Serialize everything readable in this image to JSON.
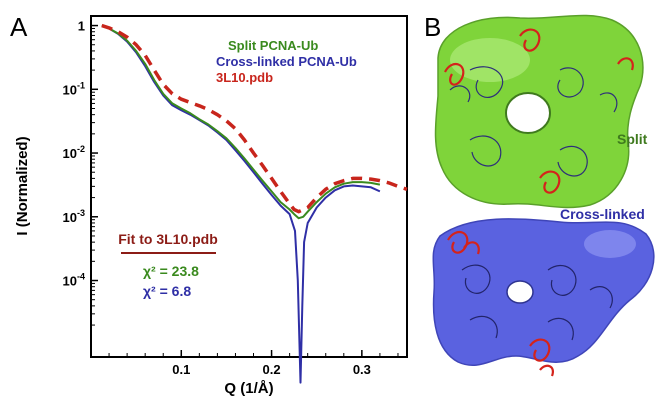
{
  "panel_labels": {
    "a": "A",
    "b": "B"
  },
  "colors": {
    "split": "#3a8a1e",
    "crosslinked": "#2f2fa6",
    "pdb": "#c8251c",
    "fit_label": "#8c1c16",
    "axis": "#000000"
  },
  "chart_data": {
    "type": "line",
    "xlabel": "Q (1/Å)",
    "ylabel": "I (Normalized)",
    "xlim": [
      0,
      0.35
    ],
    "ylim_log10": [
      -5.2,
      0.15
    ],
    "y_scale": "log",
    "x_ticks": [
      {
        "value": 0.1,
        "label": "0.1"
      },
      {
        "value": 0.2,
        "label": "0.2"
      },
      {
        "value": 0.3,
        "label": "0.3"
      }
    ],
    "y_ticks": [
      {
        "value": 1,
        "label": "1"
      },
      {
        "value": 0.1,
        "label": "10-1"
      },
      {
        "value": 0.01,
        "label": "10-2"
      },
      {
        "value": 0.001,
        "label": "10-3"
      },
      {
        "value": 0.0001,
        "label": "10-4"
      }
    ],
    "legend_position": "top-right",
    "series": [
      {
        "name": "Split PCNA-Ub",
        "color": "#3a8a1e",
        "style": "solid",
        "x": [
          0.012,
          0.02,
          0.03,
          0.04,
          0.05,
          0.06,
          0.07,
          0.08,
          0.09,
          0.1,
          0.11,
          0.12,
          0.13,
          0.14,
          0.15,
          0.16,
          0.17,
          0.18,
          0.19,
          0.2,
          0.21,
          0.22,
          0.225,
          0.23,
          0.235,
          0.24,
          0.25,
          0.26,
          0.27,
          0.28,
          0.29,
          0.3,
          0.31,
          0.32
        ],
        "y": [
          1.0,
          0.9,
          0.75,
          0.58,
          0.4,
          0.25,
          0.14,
          0.085,
          0.06,
          0.05,
          0.042,
          0.034,
          0.028,
          0.022,
          0.017,
          0.012,
          0.0082,
          0.0055,
          0.0037,
          0.0025,
          0.0017,
          0.0013,
          0.0011,
          0.00095,
          0.001,
          0.0012,
          0.0017,
          0.0023,
          0.0029,
          0.0033,
          0.0035,
          0.0035,
          0.0034,
          0.0032
        ]
      },
      {
        "name": "Cross-linked PCNA-Ub",
        "color": "#2f2fa6",
        "style": "solid",
        "x": [
          0.012,
          0.02,
          0.03,
          0.04,
          0.05,
          0.06,
          0.07,
          0.08,
          0.09,
          0.1,
          0.11,
          0.12,
          0.13,
          0.14,
          0.15,
          0.16,
          0.17,
          0.18,
          0.19,
          0.2,
          0.21,
          0.22,
          0.226,
          0.229,
          0.232,
          0.234,
          0.236,
          0.24,
          0.25,
          0.26,
          0.27,
          0.28,
          0.29,
          0.3,
          0.31,
          0.32
        ],
        "y": [
          1.0,
          0.9,
          0.74,
          0.56,
          0.38,
          0.23,
          0.13,
          0.08,
          0.056,
          0.047,
          0.04,
          0.033,
          0.027,
          0.021,
          0.016,
          0.011,
          0.0075,
          0.005,
          0.0033,
          0.0022,
          0.0015,
          0.0011,
          0.0006,
          0.0001,
          2.5e-06,
          4e-05,
          0.0004,
          0.0008,
          0.0014,
          0.002,
          0.0026,
          0.003,
          0.0031,
          0.003,
          0.0029,
          0.0025
        ]
      },
      {
        "name": "3L10.pdb",
        "color": "#c8251c",
        "style": "dashed",
        "x": [
          0.012,
          0.02,
          0.03,
          0.04,
          0.05,
          0.06,
          0.07,
          0.08,
          0.09,
          0.1,
          0.11,
          0.12,
          0.13,
          0.14,
          0.15,
          0.16,
          0.17,
          0.18,
          0.19,
          0.2,
          0.21,
          0.22,
          0.225,
          0.23,
          0.24,
          0.25,
          0.26,
          0.27,
          0.28,
          0.29,
          0.3,
          0.31,
          0.32,
          0.33,
          0.34,
          0.35
        ],
        "y": [
          1.0,
          0.92,
          0.8,
          0.66,
          0.5,
          0.34,
          0.2,
          0.12,
          0.085,
          0.07,
          0.062,
          0.055,
          0.048,
          0.04,
          0.032,
          0.024,
          0.016,
          0.01,
          0.0064,
          0.004,
          0.0025,
          0.0016,
          0.0013,
          0.0012,
          0.0014,
          0.002,
          0.0027,
          0.0033,
          0.0037,
          0.004,
          0.004,
          0.0039,
          0.0037,
          0.0034,
          0.003,
          0.0027
        ]
      }
    ],
    "annotations": {
      "fit_title": "Fit to 3L10.pdb",
      "chi_split": "χ² = 23.8",
      "chi_crosslinked": "χ² = 6.8"
    }
  },
  "structure_panel": {
    "split_label": "Split",
    "crosslinked_label": "Cross-linked"
  }
}
